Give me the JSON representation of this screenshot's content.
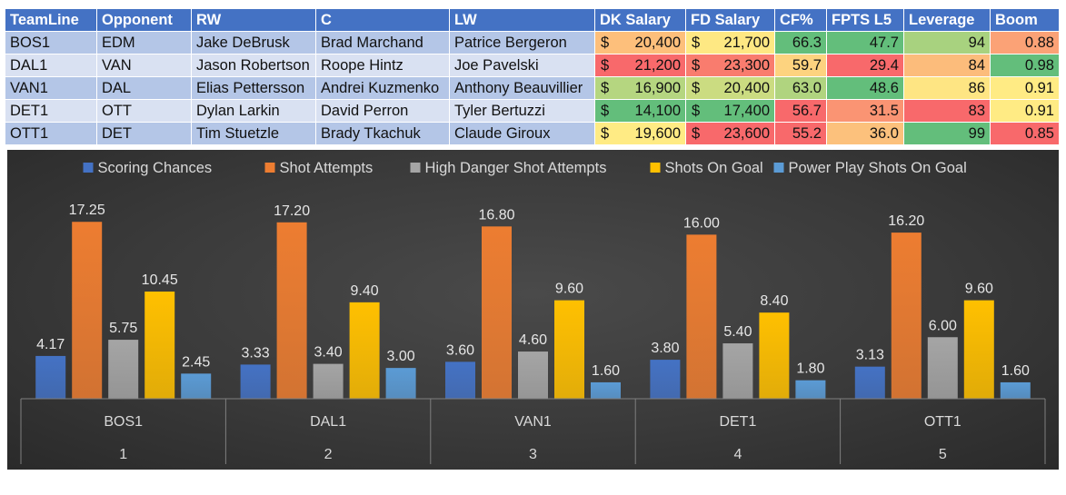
{
  "table": {
    "headers": [
      "TeamLine",
      "Opponent",
      "RW",
      "C",
      "LW",
      "DK Salary",
      "FD Salary",
      "CF%",
      "FPTS L5",
      "Leverage",
      "Boom"
    ],
    "currency_symbol": "$",
    "rows": [
      {
        "teamline": "BOS1",
        "opponent": "EDM",
        "rw": "Jake DeBrusk",
        "c": "Brad Marchand",
        "lw": "Patrice Bergeron",
        "dk": "20,400",
        "fd": "21,700",
        "cf": "66.3",
        "fpts": "47.7",
        "leverage": "94",
        "boom": "0.88",
        "colors": {
          "dk": "#fdbf7b",
          "fd": "#fee883",
          "cf": "#63be7b",
          "fpts": "#63be7b",
          "leverage": "#a8d27f",
          "boom": "#fba276"
        }
      },
      {
        "teamline": "DAL1",
        "opponent": "VAN",
        "rw": "Jason Robertson",
        "c": "Roope Hintz",
        "lw": "Joe Pavelski",
        "dk": "21,200",
        "fd": "23,300",
        "cf": "59.7",
        "fpts": "29.4",
        "leverage": "84",
        "boom": "0.98",
        "colors": {
          "dk": "#f8696b",
          "fd": "#f97c6e",
          "cf": "#fdd37f",
          "fpts": "#f8696b",
          "leverage": "#fcbc7b",
          "boom": "#63be7b"
        }
      },
      {
        "teamline": "VAN1",
        "opponent": "DAL",
        "rw": "Elias Pettersson",
        "c": "Andrei Kuzmenko",
        "lw": "Anthony Beauvillier",
        "dk": "16,900",
        "fd": "20,400",
        "cf": "63.0",
        "fpts": "48.6",
        "leverage": "86",
        "boom": "0.91",
        "colors": {
          "dk": "#b5d680",
          "fd": "#cbdc81",
          "cf": "#b0d47f",
          "fpts": "#63be7b",
          "leverage": "#fee583",
          "boom": "#ffeb84"
        }
      },
      {
        "teamline": "DET1",
        "opponent": "OTT",
        "rw": "Dylan Larkin",
        "c": "David Perron",
        "lw": "Tyler Bertuzzi",
        "dk": "14,100",
        "fd": "17,400",
        "cf": "56.7",
        "fpts": "31.5",
        "leverage": "83",
        "boom": "0.91",
        "colors": {
          "dk": "#63be7b",
          "fd": "#63be7b",
          "cf": "#f8696b",
          "fpts": "#fa9473",
          "leverage": "#f8696b",
          "boom": "#ffeb84"
        }
      },
      {
        "teamline": "OTT1",
        "opponent": "DET",
        "rw": "Tim Stuetzle",
        "c": "Brady Tkachuk",
        "lw": "Claude Giroux",
        "dk": "19,600",
        "fd": "23,600",
        "cf": "55.2",
        "fpts": "36.0",
        "leverage": "99",
        "boom": "0.85",
        "colors": {
          "dk": "#ffeb84",
          "fd": "#f8696b",
          "cf": "#f8696b",
          "fpts": "#fcc17c",
          "leverage": "#63be7b",
          "boom": "#f8696b"
        }
      }
    ]
  },
  "chart_data": {
    "type": "bar",
    "categories": [
      "BOS1",
      "DAL1",
      "VAN1",
      "DET1",
      "OTT1"
    ],
    "category_numbers": [
      "1",
      "2",
      "3",
      "4",
      "5"
    ],
    "series": [
      {
        "name": "Scoring Chances",
        "color": "#4472c4",
        "values": [
          4.17,
          3.33,
          3.6,
          3.8,
          3.13
        ]
      },
      {
        "name": "Shot Attempts",
        "color": "#ed7d31",
        "values": [
          17.25,
          17.2,
          16.8,
          16.0,
          16.2
        ]
      },
      {
        "name": "High Danger Shot Attempts",
        "color": "#a5a5a5",
        "values": [
          5.75,
          3.4,
          4.6,
          5.4,
          6.0
        ]
      },
      {
        "name": "Shots On Goal",
        "color": "#ffc000",
        "values": [
          10.45,
          9.4,
          9.6,
          8.4,
          9.6
        ]
      },
      {
        "name": "Power Play Shots On Goal",
        "color": "#5b9bd5",
        "values": [
          2.45,
          3.0,
          1.6,
          1.8,
          1.6
        ]
      }
    ],
    "data_labels": true,
    "legend_position": "top",
    "grid": false,
    "ylim": [
      0,
      20
    ]
  }
}
